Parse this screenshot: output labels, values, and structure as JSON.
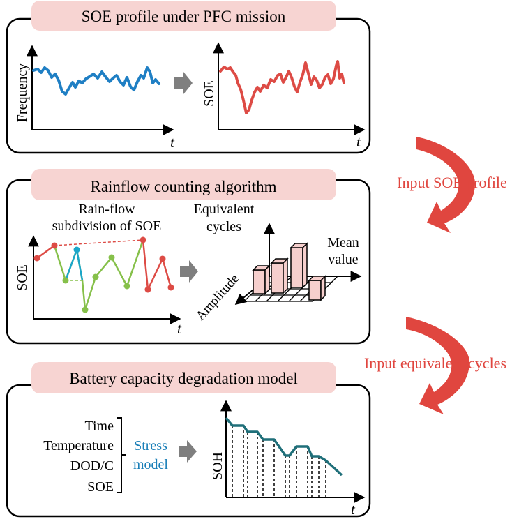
{
  "panels": {
    "soe_profile": {
      "title": "SOE profile under PFC mission",
      "frequency_axis_label": "Frequency",
      "soe_axis_label": "SOE",
      "time_label": "t"
    },
    "rainflow": {
      "title": "Rainflow counting algorithm",
      "subtitle_line1": "Rain-flow",
      "subtitle_line2": "subdivision of SOE",
      "soe_axis_label": "SOE",
      "time_label": "t",
      "equivalent_cycles_line1": "Equivalent",
      "equivalent_cycles_line2": "cycles",
      "mean_value_line1": "Mean",
      "mean_value_line2": "value",
      "amplitude_label": "Amplitude"
    },
    "degradation": {
      "title": "Battery capacity degradation model",
      "inputs": [
        "Time",
        "Temperature",
        "DOD/C",
        "SOE"
      ],
      "stress_model_line1": "Stress",
      "stress_model_line2": "model",
      "soh_axis_label": "SOH",
      "time_label": "t"
    }
  },
  "side_arrows": {
    "input_soe_profile": "Input SOE profile",
    "input_equivalent_cycles": "Input equivalent cycles"
  },
  "colors": {
    "title_fill": "#f7d4d2",
    "frequency_line": "#1f7fc4",
    "soe_line": "#dd4b45",
    "rainflow_red": "#dd4b45",
    "rainflow_green": "#86c04a",
    "rainflow_cyan": "#1ba6c9",
    "bar_fill": "#f6cfcd",
    "soh_line": "#1f6f79",
    "stress_text": "#1a7fb8",
    "side_arrow": "#e0463f",
    "side_text": "#e0463f",
    "grey_arrow": "#7f7f7f"
  }
}
